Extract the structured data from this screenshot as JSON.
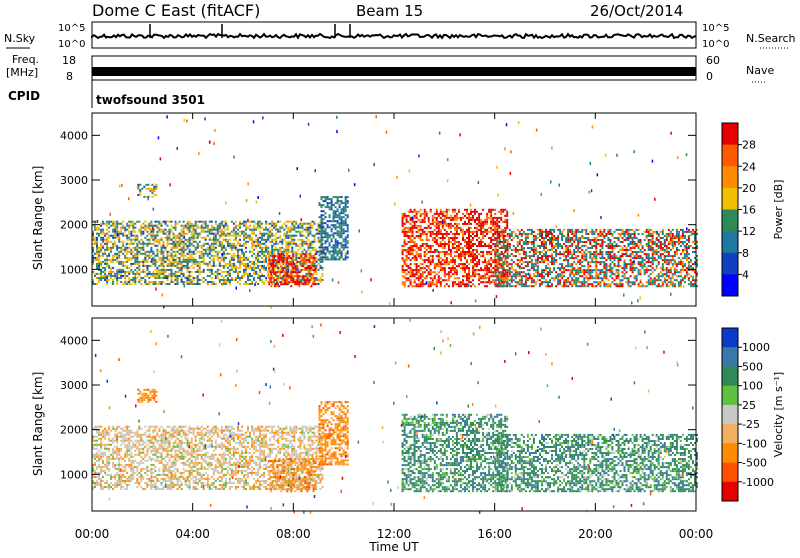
{
  "header": {
    "station": "Dome C East (fitACF)",
    "beam": "Beam 15",
    "date": "26/Oct/2014"
  },
  "params": {
    "nsky_label": "N.Sky",
    "nsky_ticks": [
      "10^5",
      "10^0"
    ],
    "nsearch_label": "N.Search",
    "nsearch_ticks": [
      "10^5",
      "10^0"
    ],
    "freq_label": "Freq.",
    "freq_unit": "[MHz]",
    "freq_ticks": [
      "18",
      "8"
    ],
    "nave_label": "Nave",
    "nave_ticks": [
      "60",
      "0"
    ],
    "cpid_label": "CPID",
    "cpid_value": "twofsound 3501"
  },
  "chart_data": [
    {
      "type": "heatmap",
      "panel": "power",
      "ylabel": "Slant Range [km]",
      "xlabel": "Time UT",
      "ylim": [
        180,
        4500
      ],
      "xlim": [
        0,
        24
      ],
      "yticks": [
        1000,
        2000,
        3000,
        4000
      ],
      "xticks": [
        "00:00",
        "04:00",
        "08:00",
        "12:00",
        "16:00",
        "20:00",
        "00:00"
      ],
      "colorbar": {
        "label": "Power [dB]",
        "ticks": [
          "28",
          "24",
          "20",
          "16",
          "12",
          "8",
          "4"
        ],
        "colors": [
          "#e60000",
          "#ff5a00",
          "#ff8c00",
          "#f0c000",
          "#2e8b57",
          "#1e78a0",
          "#1040c0",
          "#0000ff"
        ]
      },
      "echo_regions": [
        {
          "t0": 0.0,
          "t1": 9.2,
          "r0": 650,
          "r1": 2050,
          "level": "mid"
        },
        {
          "t0": 7.0,
          "t1": 8.9,
          "r0": 600,
          "r1": 1350,
          "level": "high"
        },
        {
          "t0": 1.8,
          "t1": 2.6,
          "r0": 2600,
          "r1": 2900,
          "level": "mid"
        },
        {
          "t0": 9.0,
          "t1": 10.2,
          "r0": 1200,
          "r1": 2600,
          "level": "low"
        },
        {
          "t0": 12.3,
          "t1": 16.5,
          "r0": 600,
          "r1": 2350,
          "level": "high"
        },
        {
          "t0": 16.0,
          "t1": 24.0,
          "r0": 600,
          "r1": 1900,
          "level": "mixed"
        }
      ]
    },
    {
      "type": "heatmap",
      "panel": "velocity",
      "ylabel": "Slant Range [km]",
      "xlabel": "Time UT",
      "ylim": [
        180,
        4500
      ],
      "xlim": [
        0,
        24
      ],
      "yticks": [
        1000,
        2000,
        3000,
        4000
      ],
      "xticks": [
        "00:00",
        "04:00",
        "08:00",
        "12:00",
        "16:00",
        "20:00",
        "00:00"
      ],
      "colorbar": {
        "label": "Velocity [m s⁻¹]",
        "ticks": [
          "1000",
          "500",
          "100",
          "25",
          "-25",
          "-100",
          "-500",
          "-1000"
        ],
        "colors": [
          "#0a3cc8",
          "#3a78a8",
          "#2e8b57",
          "#60c040",
          "#c8c8c8",
          "#f0b060",
          "#ff8c00",
          "#ff5000",
          "#e60000"
        ]
      },
      "echo_regions": [
        {
          "t0": 0.0,
          "t1": 9.2,
          "r0": 650,
          "r1": 2050,
          "level": "gray-orange"
        },
        {
          "t0": 7.0,
          "t1": 8.9,
          "r0": 600,
          "r1": 1350,
          "level": "orange"
        },
        {
          "t0": 1.8,
          "t1": 2.6,
          "r0": 2600,
          "r1": 2900,
          "level": "orange"
        },
        {
          "t0": 9.0,
          "t1": 10.2,
          "r0": 1200,
          "r1": 2600,
          "level": "orange"
        },
        {
          "t0": 12.3,
          "t1": 16.5,
          "r0": 600,
          "r1": 2350,
          "level": "green"
        },
        {
          "t0": 16.0,
          "t1": 24.0,
          "r0": 600,
          "r1": 1900,
          "level": "green"
        }
      ]
    }
  ]
}
